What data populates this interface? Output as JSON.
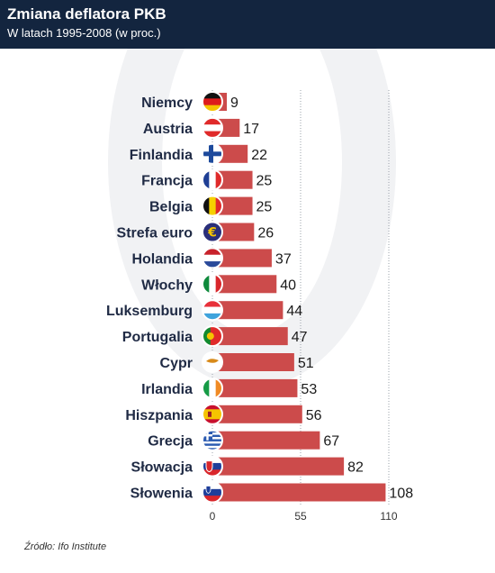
{
  "header": {
    "title": "Zmiana deflatora PKB",
    "subtitle": "W latach 1995-2008 (w proc.)"
  },
  "source": "Źródło: Ifo Institute",
  "colors": {
    "bar": "#cc4b4b",
    "header_bg": "#13253f",
    "text": "#1f2a44"
  },
  "chart_data": {
    "type": "bar",
    "orientation": "horizontal",
    "categories": [
      "Niemcy",
      "Austria",
      "Finlandia",
      "Francja",
      "Belgia",
      "Strefa euro",
      "Holandia",
      "Włochy",
      "Luksemburg",
      "Portugalia",
      "Cypr",
      "Irlandia",
      "Hiszpania",
      "Grecja",
      "Słowacja",
      "Słowenia"
    ],
    "values": [
      9,
      17,
      22,
      25,
      25,
      26,
      37,
      40,
      44,
      47,
      51,
      53,
      56,
      67,
      82,
      108
    ],
    "data_labels": [
      "9",
      "17",
      "22",
      "25",
      "25",
      "26",
      "37",
      "40",
      "44",
      "47",
      "51",
      "53",
      "56",
      "67",
      "82",
      "108"
    ],
    "flag_icons": [
      "flag-germany-icon",
      "flag-austria-icon",
      "flag-finland-icon",
      "flag-france-icon",
      "flag-belgium-icon",
      "flag-eu-euro-icon",
      "flag-netherlands-icon",
      "flag-italy-icon",
      "flag-luxembourg-icon",
      "flag-portugal-icon",
      "flag-cyprus-icon",
      "flag-ireland-icon",
      "flag-spain-icon",
      "flag-greece-icon",
      "flag-slovakia-icon",
      "flag-slovenia-icon"
    ],
    "xlim": [
      0,
      110
    ],
    "x_ticks": [
      0,
      55,
      110
    ],
    "x_tick_labels": [
      "0",
      "55",
      "110"
    ],
    "grid": "vertical dotted lines at ticks",
    "title": "Zmiana deflatora PKB",
    "subtitle": "W latach 1995-2008 (w proc.)"
  }
}
